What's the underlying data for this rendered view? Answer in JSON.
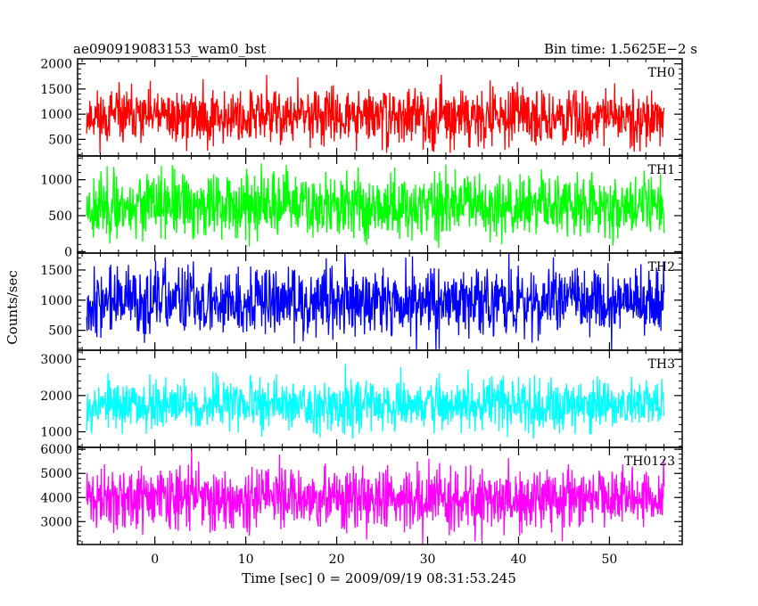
{
  "header": {
    "title": "ae090919083153_wam0_bst",
    "bin_time": "Bin time: 1.5625E−2 s"
  },
  "chart_data": {
    "type": "line",
    "title": "ae090919083153_wam0_bst",
    "subtitle": "Bin time: 1.5625E−2 s",
    "xlabel": "Time [sec] 0 = 2009/09/19 08:31:53.245",
    "ylabel": "Counts/sec",
    "xlim": [
      -8.5,
      58
    ],
    "x_data_range": [
      -7.5,
      56
    ],
    "xticks": [
      0,
      10,
      20,
      30,
      40,
      50
    ],
    "xtick_labels": [
      "0",
      "10",
      "20",
      "30",
      "40",
      "50"
    ],
    "x_minor_step": 2,
    "grid": false,
    "panels": [
      {
        "name": "TH0",
        "color": "#ff0000",
        "ylim": [
          170,
          2100
        ],
        "yticks": [
          500,
          1000,
          1500,
          2000
        ],
        "ytick_labels": [
          "500",
          "1000",
          "1500",
          "2000"
        ],
        "y_minor_step": 100,
        "mean": 950,
        "spread": 330,
        "points": 1300,
        "seed": 11
      },
      {
        "name": "TH1",
        "color": "#00ff00",
        "ylim": [
          -20,
          1330
        ],
        "yticks": [
          0,
          500,
          1000
        ],
        "ytick_labels": [
          "0",
          "500",
          "1000"
        ],
        "y_minor_step": 100,
        "mean": 640,
        "spread": 280,
        "points": 1300,
        "seed": 23
      },
      {
        "name": "TH2",
        "color": "#0000ff",
        "ylim": [
          170,
          1780
        ],
        "yticks": [
          500,
          1000,
          1500
        ],
        "ytick_labels": [
          "500",
          "1000",
          "1500"
        ],
        "y_minor_step": 100,
        "mean": 980,
        "spread": 350,
        "points": 1300,
        "seed": 37
      },
      {
        "name": "TH3",
        "color": "#00ffff",
        "ylim": [
          570,
          3250
        ],
        "yticks": [
          1000,
          2000,
          3000
        ],
        "ytick_labels": [
          "1000",
          "2000",
          "3000"
        ],
        "y_minor_step": 200,
        "mean": 1750,
        "spread": 430,
        "points": 1300,
        "seed": 53
      },
      {
        "name": "TH0123",
        "color": "#ff00ff",
        "ylim": [
          2050,
          6080
        ],
        "yticks": [
          3000,
          4000,
          5000,
          6000
        ],
        "ytick_labels": [
          "3000",
          "4000",
          "5000",
          "6000"
        ],
        "y_minor_step": 200,
        "mean": 3950,
        "spread": 780,
        "points": 1300,
        "seed": 71
      }
    ]
  }
}
